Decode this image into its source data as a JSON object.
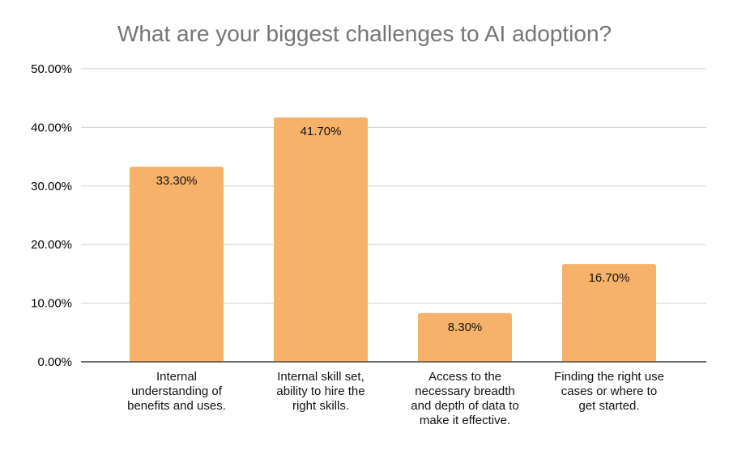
{
  "chart_data": {
    "type": "bar",
    "title": "What are your biggest challenges to AI adoption?",
    "xlabel": "",
    "ylabel": "",
    "categories": [
      [
        "Internal",
        "understanding of",
        "benefits and uses."
      ],
      [
        "Internal skill set,",
        "ability to hire the",
        "right skills."
      ],
      [
        "Access to the",
        "necessary breadth",
        "and depth of data to",
        "make it effective."
      ],
      [
        "Finding the right use",
        "cases or where to",
        "get started."
      ]
    ],
    "values": [
      33.3,
      41.7,
      8.3,
      16.7
    ],
    "data_labels": [
      "33.30%",
      "41.70%",
      "8.30%",
      "16.70%"
    ],
    "ylim": [
      0,
      50
    ],
    "yticks": [
      0,
      10,
      20,
      30,
      40,
      50
    ],
    "ytick_labels": [
      "0.00%",
      "10.00%",
      "20.00%",
      "30.00%",
      "40.00%",
      "50.00%"
    ],
    "grid": true,
    "legend": "none",
    "colors": {
      "bar": "#F6B26B",
      "grid": "#D0D0D0",
      "title": "#757575",
      "axis": "#333333"
    }
  }
}
